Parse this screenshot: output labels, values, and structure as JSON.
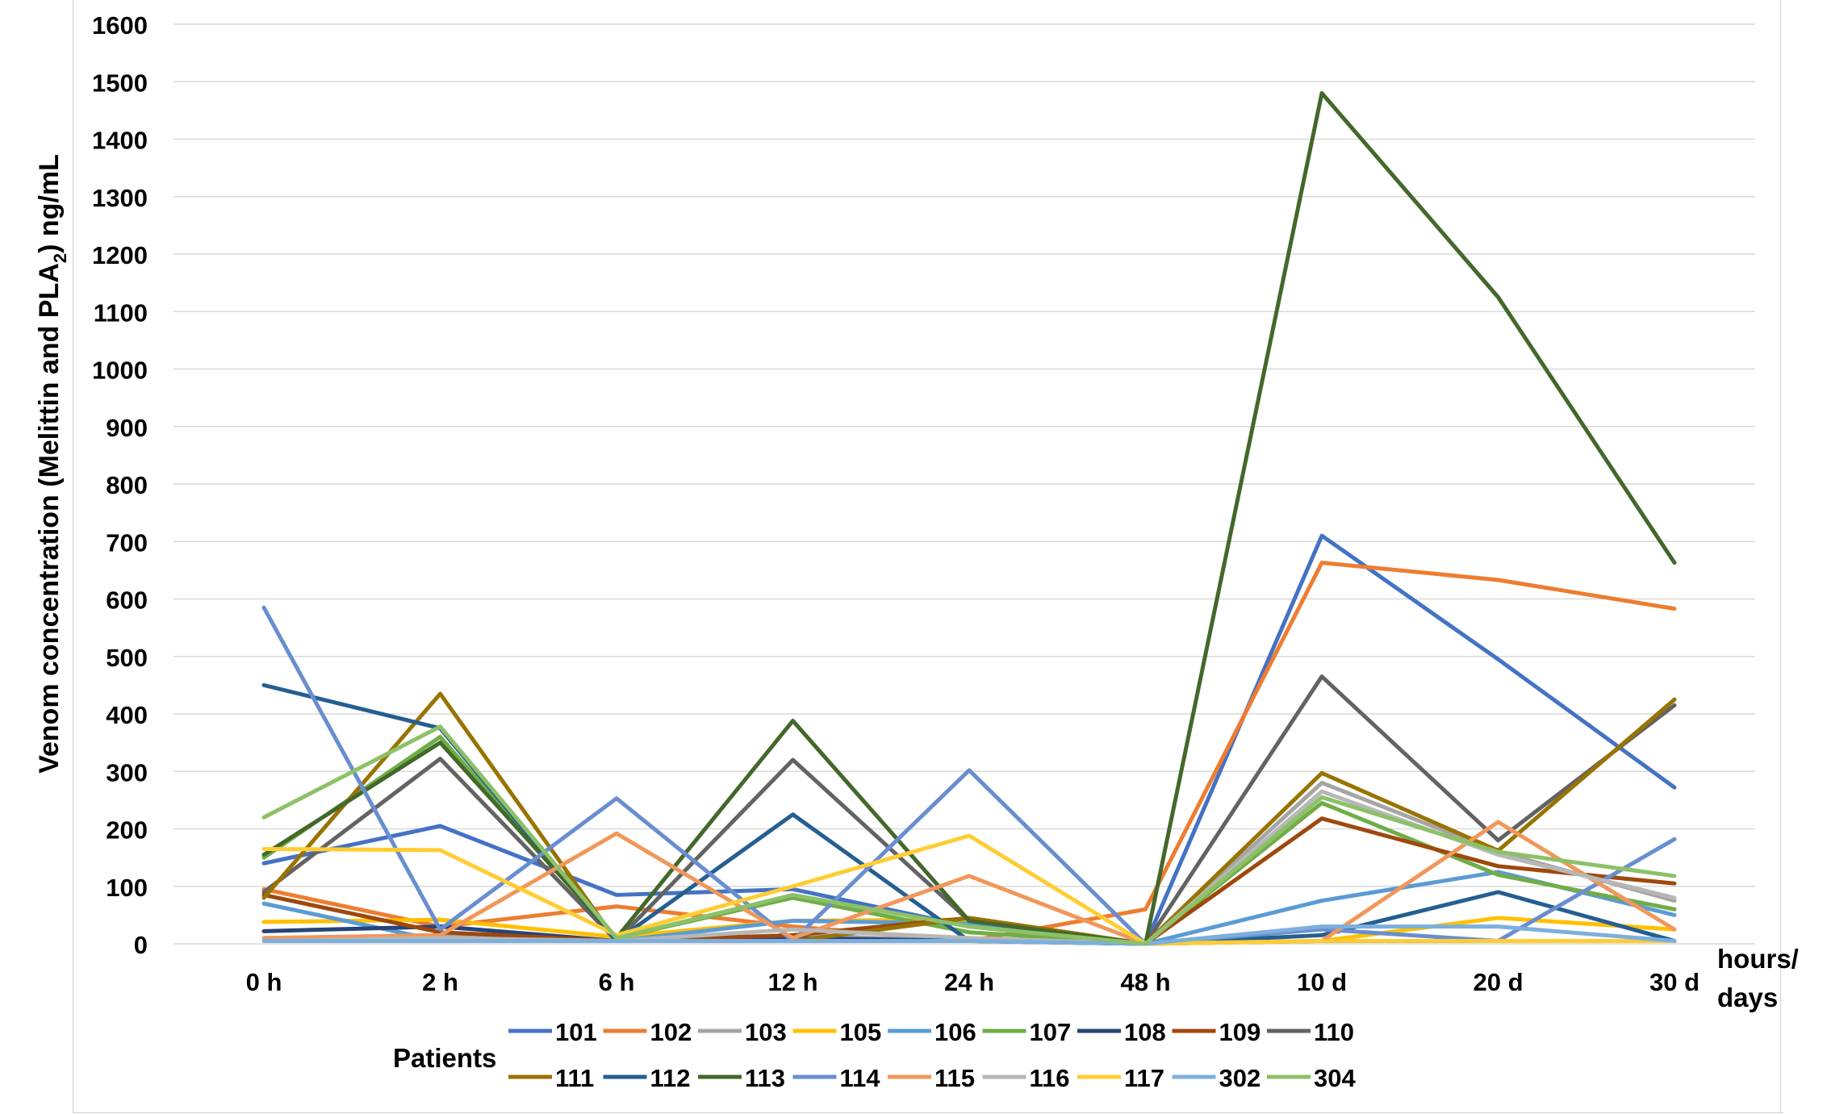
{
  "chart_data": {
    "type": "line",
    "ylabel_main": "Venom concentration (Melittin and PLA",
    "ylabel_sub": "2",
    "ylabel_tail": ") ng/mL",
    "xlabel_line1": "hours/",
    "xlabel_line2": "days",
    "legend_title": "Patients",
    "ylim": [
      0,
      1600
    ],
    "yticks": [
      0,
      100,
      200,
      300,
      400,
      500,
      600,
      700,
      800,
      900,
      1000,
      1100,
      1200,
      1300,
      1400,
      1500,
      1600
    ],
    "grid": true,
    "legend_position": "bottom",
    "categories": [
      "0 h",
      "2 h",
      "6 h",
      "12 h",
      "24 h",
      "48 h",
      "10 d",
      "20 d",
      "30 d"
    ],
    "series": [
      {
        "name": "101",
        "color": "#4472C4",
        "values": [
          140,
          205,
          85,
          95,
          30,
          0,
          710,
          495,
          272
        ]
      },
      {
        "name": "102",
        "color": "#ED7D31",
        "values": [
          95,
          30,
          65,
          30,
          5,
          60,
          663,
          633,
          583
        ]
      },
      {
        "name": "103",
        "color": "#A5A5A5",
        "values": [
          10,
          15,
          5,
          15,
          5,
          0,
          280,
          160,
          75
        ]
      },
      {
        "name": "105",
        "color": "#FFC000",
        "values": [
          38,
          42,
          12,
          40,
          42,
          0,
          5,
          45,
          25
        ]
      },
      {
        "name": "106",
        "color": "#5B9BD5",
        "values": [
          70,
          5,
          5,
          40,
          35,
          0,
          75,
          125,
          50
        ]
      },
      {
        "name": "107",
        "color": "#70AD47",
        "values": [
          150,
          360,
          10,
          80,
          20,
          0,
          245,
          120,
          60
        ]
      },
      {
        "name": "108",
        "color": "#264478",
        "values": [
          22,
          30,
          5,
          10,
          5,
          0,
          5,
          5,
          5
        ]
      },
      {
        "name": "109",
        "color": "#9E480E",
        "values": [
          85,
          20,
          5,
          15,
          45,
          0,
          218,
          135,
          105
        ]
      },
      {
        "name": "110",
        "color": "#636363",
        "values": [
          90,
          322,
          5,
          320,
          40,
          0,
          465,
          180,
          415
        ]
      },
      {
        "name": "111",
        "color": "#997300",
        "values": [
          80,
          435,
          5,
          5,
          45,
          0,
          297,
          162,
          425
        ]
      },
      {
        "name": "112",
        "color": "#255E91",
        "values": [
          450,
          375,
          5,
          225,
          5,
          0,
          15,
          90,
          5
        ]
      },
      {
        "name": "113",
        "color": "#43682B",
        "values": [
          155,
          350,
          10,
          388,
          40,
          0,
          1480,
          1125,
          663
        ]
      },
      {
        "name": "114",
        "color": "#698ED0",
        "values": [
          585,
          25,
          253,
          5,
          302,
          0,
          25,
          5,
          182
        ]
      },
      {
        "name": "115",
        "color": "#F1975A",
        "values": [
          10,
          15,
          192,
          10,
          118,
          0,
          5,
          212,
          25
        ]
      },
      {
        "name": "116",
        "color": "#B7B7B7",
        "values": [
          5,
          10,
          5,
          25,
          10,
          0,
          265,
          155,
          80
        ]
      },
      {
        "name": "117",
        "color": "#FFCD33",
        "values": [
          165,
          163,
          15,
          100,
          188,
          0,
          5,
          5,
          5
        ]
      },
      {
        "name": "302",
        "color": "#7CAFDD",
        "values": [
          5,
          5,
          5,
          5,
          5,
          0,
          30,
          30,
          5
        ]
      },
      {
        "name": "304",
        "color": "#8CC168",
        "values": [
          220,
          378,
          10,
          85,
          30,
          0,
          255,
          160,
          118
        ]
      }
    ]
  }
}
